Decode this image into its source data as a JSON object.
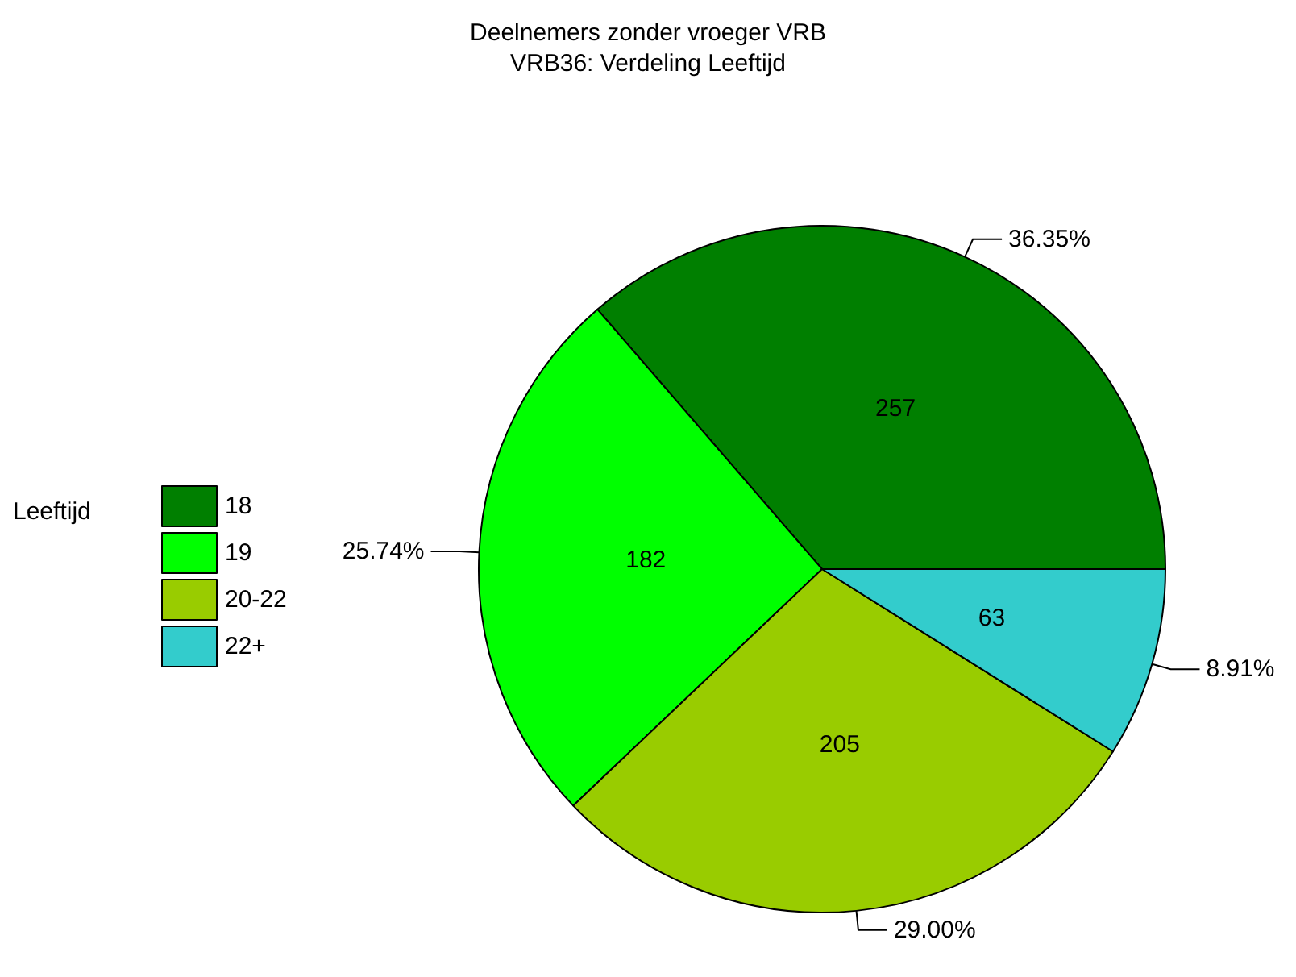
{
  "chart_data": {
    "type": "pie",
    "title": "Deelnemers zonder vroeger VRB",
    "subtitle": "VRB36: Verdeling Leeftijd",
    "legend_title": "Leeftijd",
    "categories": [
      "18",
      "19",
      "20-22",
      "22+"
    ],
    "values": [
      257,
      182,
      205,
      63
    ],
    "colors": [
      "#007f00",
      "#00ff00",
      "#99cc00",
      "#33cccc"
    ],
    "data_labels": true,
    "annotations": [
      "36.35%",
      "25.74%",
      "29.00%",
      "8.91%"
    ],
    "legend": "left"
  }
}
